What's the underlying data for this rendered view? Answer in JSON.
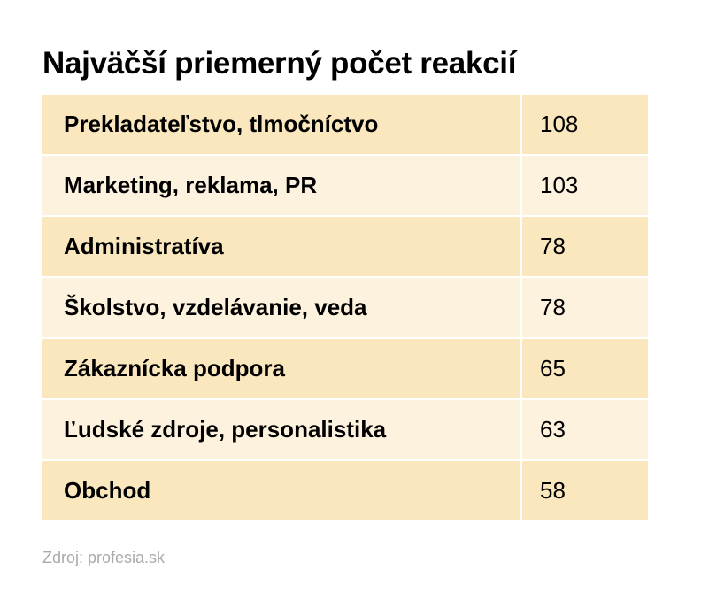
{
  "chart_data": {
    "type": "table",
    "title": "Najväčší priemerný počet reakcií",
    "categories": [
      "Prekladateľstvo, tlmočníctvo",
      "Marketing, reklama, PR",
      "Administratíva",
      "Školstvo, vzdelávanie, veda",
      "Zákaznícka podpora",
      "Ľudské zdroje, personalistika",
      "Obchod"
    ],
    "values": [
      108,
      103,
      78,
      78,
      65,
      63,
      58
    ],
    "row_colors": [
      "#fae7be",
      "#fdf2dd"
    ],
    "source": "Zdroj: profesia.sk"
  }
}
